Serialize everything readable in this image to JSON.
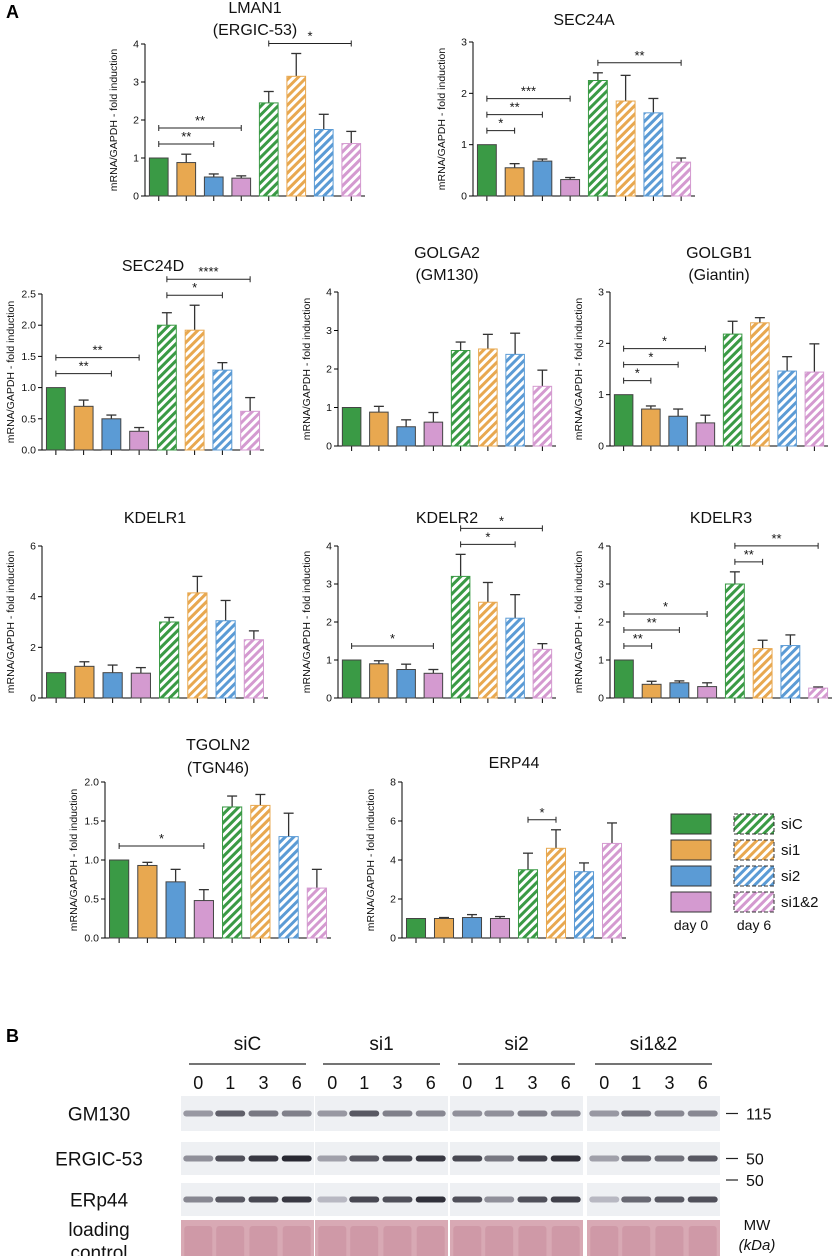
{
  "panel_a_label": "A",
  "panel_b_label": "B",
  "y_label": "mRNA/GAPDH - fold induction",
  "colors": {
    "siC": "#3a9a45",
    "si1": "#e8a850",
    "si2": "#5b9bd5",
    "si1&2": "#d49ad0"
  },
  "legend": {
    "entries": [
      "siC",
      "si1",
      "si2",
      "si1&2"
    ],
    "day0_label": "day 0",
    "day6_label": "day 6"
  },
  "chart_data": [
    {
      "type": "bar",
      "title": [
        "LMAN1",
        "(ERGIC-53)"
      ],
      "categories": [
        "siC d0",
        "si1 d0",
        "si2 d0",
        "si1&2 d0",
        "siC d6",
        "si1 d6",
        "si2 d6",
        "si1&2 d6"
      ],
      "values": [
        1,
        0.88,
        0.5,
        0.47,
        2.45,
        3.15,
        1.75,
        1.38
      ],
      "errors": [
        0,
        0.22,
        0.08,
        0.06,
        0.3,
        0.6,
        0.4,
        0.32
      ],
      "ylim": [
        0,
        4
      ],
      "yticks": [
        "0",
        "1",
        "2",
        "3",
        "4"
      ],
      "sig": [
        {
          "from": 0,
          "to": 2,
          "label": "**"
        },
        {
          "from": 0,
          "to": 3,
          "label": "**"
        },
        {
          "from": 4,
          "to": 7,
          "label": "*"
        }
      ]
    },
    {
      "type": "bar",
      "title": [
        "SEC24A"
      ],
      "categories": [
        "siC d0",
        "si1 d0",
        "si2 d0",
        "si1&2 d0",
        "siC d6",
        "si1 d6",
        "si2 d6",
        "si1&2 d6"
      ],
      "values": [
        1,
        0.55,
        0.68,
        0.32,
        2.25,
        1.85,
        1.62,
        0.66
      ],
      "errors": [
        0,
        0.08,
        0.04,
        0.04,
        0.15,
        0.5,
        0.28,
        0.08
      ],
      "ylim": [
        0,
        3
      ],
      "yticks": [
        "0",
        "1",
        "2",
        "3"
      ],
      "sig": [
        {
          "from": 0,
          "to": 1,
          "label": "*"
        },
        {
          "from": 0,
          "to": 2,
          "label": "**"
        },
        {
          "from": 0,
          "to": 3,
          "label": "***"
        },
        {
          "from": 4,
          "to": 7,
          "label": "**"
        }
      ]
    },
    {
      "type": "bar",
      "title": [
        "SEC24D"
      ],
      "categories": [
        "siC d0",
        "si1 d0",
        "si2 d0",
        "si1&2 d0",
        "siC d6",
        "si1 d6",
        "si2 d6",
        "si1&2 d6"
      ],
      "values": [
        1,
        0.7,
        0.5,
        0.3,
        2.0,
        1.92,
        1.28,
        0.62
      ],
      "errors": [
        0,
        0.1,
        0.06,
        0.06,
        0.2,
        0.4,
        0.12,
        0.22
      ],
      "ylim": [
        0,
        2.5
      ],
      "yticks": [
        "0.0",
        "0.5",
        "1.0",
        "1.5",
        "2.0",
        "2.5"
      ],
      "sig": [
        {
          "from": 0,
          "to": 2,
          "label": "**"
        },
        {
          "from": 0,
          "to": 3,
          "label": "**"
        },
        {
          "from": 4,
          "to": 6,
          "label": "*"
        },
        {
          "from": 4,
          "to": 7,
          "label": "****"
        }
      ]
    },
    {
      "type": "bar",
      "title": [
        "GOLGA2",
        "(GM130)"
      ],
      "categories": [
        "siC d0",
        "si1 d0",
        "si2 d0",
        "si1&2 d0",
        "siC d6",
        "si1 d6",
        "si2 d6",
        "si1&2 d6"
      ],
      "values": [
        1,
        0.88,
        0.5,
        0.62,
        2.48,
        2.52,
        2.38,
        1.55
      ],
      "errors": [
        0,
        0.15,
        0.18,
        0.25,
        0.22,
        0.38,
        0.55,
        0.42
      ],
      "ylim": [
        0,
        4
      ],
      "yticks": [
        "0",
        "1",
        "2",
        "3",
        "4"
      ],
      "sig": []
    },
    {
      "type": "bar",
      "title": [
        "GOLGB1",
        "(Giantin)"
      ],
      "categories": [
        "siC d0",
        "si1 d0",
        "si2 d0",
        "si1&2 d0",
        "siC d6",
        "si1 d6",
        "si2 d6",
        "si1&2 d6"
      ],
      "values": [
        1,
        0.72,
        0.58,
        0.45,
        2.18,
        2.4,
        1.46,
        1.44
      ],
      "errors": [
        0,
        0.06,
        0.14,
        0.15,
        0.25,
        0.1,
        0.28,
        0.55
      ],
      "ylim": [
        0,
        3
      ],
      "yticks": [
        "0",
        "1",
        "2",
        "3"
      ],
      "sig": [
        {
          "from": 0,
          "to": 1,
          "label": "*"
        },
        {
          "from": 0,
          "to": 2,
          "label": "*"
        },
        {
          "from": 0,
          "to": 3,
          "label": "*"
        }
      ]
    },
    {
      "type": "bar",
      "title": [
        "KDELR1"
      ],
      "categories": [
        "siC d0",
        "si1 d0",
        "si2 d0",
        "si1&2 d0",
        "siC d6",
        "si1 d6",
        "si2 d6",
        "si1&2 d6"
      ],
      "values": [
        1,
        1.25,
        1.0,
        0.98,
        3.0,
        4.15,
        3.05,
        2.3
      ],
      "errors": [
        0,
        0.18,
        0.3,
        0.22,
        0.18,
        0.65,
        0.8,
        0.35
      ],
      "ylim": [
        0,
        6
      ],
      "yticks": [
        "0",
        "2",
        "4",
        "6"
      ],
      "sig": []
    },
    {
      "type": "bar",
      "title": [
        "KDELR2"
      ],
      "categories": [
        "siC d0",
        "si1 d0",
        "si2 d0",
        "si1&2 d0",
        "siC d6",
        "si1 d6",
        "si2 d6",
        "si1&2 d6"
      ],
      "values": [
        1,
        0.9,
        0.75,
        0.65,
        3.2,
        2.52,
        2.1,
        1.28
      ],
      "errors": [
        0,
        0.08,
        0.14,
        0.1,
        0.58,
        0.52,
        0.62,
        0.15
      ],
      "ylim": [
        0,
        4
      ],
      "yticks": [
        "0",
        "1",
        "2",
        "3",
        "4"
      ],
      "sig": [
        {
          "from": 0,
          "to": 3,
          "label": "*"
        },
        {
          "from": 4,
          "to": 6,
          "label": "*"
        },
        {
          "from": 4,
          "to": 7,
          "label": "*"
        }
      ]
    },
    {
      "type": "bar",
      "title": [
        "KDELR3"
      ],
      "categories": [
        "siC d0",
        "si1 d0",
        "si2 d0",
        "si1&2 d0",
        "siC d6",
        "si1 d6",
        "si2 d6",
        "si1&2 d6"
      ],
      "values": [
        1,
        0.36,
        0.4,
        0.3,
        3.0,
        1.3,
        1.38,
        0.26
      ],
      "errors": [
        0,
        0.08,
        0.05,
        0.1,
        0.32,
        0.22,
        0.28,
        0.03
      ],
      "ylim": [
        0,
        4
      ],
      "yticks": [
        "0",
        "1",
        "2",
        "3",
        "4"
      ],
      "sig": [
        {
          "from": 0,
          "to": 1,
          "label": "**"
        },
        {
          "from": 0,
          "to": 2,
          "label": "**"
        },
        {
          "from": 0,
          "to": 3,
          "label": "*"
        },
        {
          "from": 4,
          "to": 5,
          "label": "**"
        },
        {
          "from": 4,
          "to": 7,
          "label": "**"
        }
      ]
    },
    {
      "type": "bar",
      "title": [
        "TGOLN2",
        "(TGN46)"
      ],
      "categories": [
        "siC d0",
        "si1 d0",
        "si2 d0",
        "si1&2 d0",
        "siC d6",
        "si1 d6",
        "si2 d6",
        "si1&2 d6"
      ],
      "values": [
        1,
        0.93,
        0.72,
        0.48,
        1.68,
        1.7,
        1.3,
        0.64
      ],
      "errors": [
        0,
        0.04,
        0.16,
        0.14,
        0.14,
        0.14,
        0.3,
        0.24
      ],
      "ylim": [
        0,
        2
      ],
      "yticks": [
        "0.0",
        "0.5",
        "1.0",
        "1.5",
        "2.0"
      ],
      "sig": [
        {
          "from": 0,
          "to": 3,
          "label": "*"
        }
      ]
    },
    {
      "type": "bar",
      "title": [
        "ERP44"
      ],
      "categories": [
        "siC d0",
        "si1 d0",
        "si2 d0",
        "si1&2 d0",
        "siC d6",
        "si1 d6",
        "si2 d6",
        "si1&2 d6"
      ],
      "values": [
        1,
        1.0,
        1.05,
        1.0,
        3.5,
        4.6,
        3.4,
        4.85
      ],
      "errors": [
        0,
        0.05,
        0.15,
        0.1,
        0.85,
        0.95,
        0.45,
        1.05
      ],
      "ylim": [
        0,
        8
      ],
      "yticks": [
        "0",
        "2",
        "4",
        "6",
        "8"
      ],
      "sig": [
        {
          "from": 4,
          "to": 5,
          "label": "*"
        }
      ]
    }
  ],
  "blot": {
    "groups": [
      {
        "name": "siC",
        "lanes": [
          "0",
          "1",
          "3",
          "6"
        ]
      },
      {
        "name": "si1",
        "lanes": [
          "0",
          "1",
          "3",
          "6"
        ]
      },
      {
        "name": "si2",
        "lanes": [
          "0",
          "1",
          "3",
          "6"
        ]
      },
      {
        "name": "si1&2",
        "lanes": [
          "0",
          "1",
          "3",
          "6"
        ]
      }
    ],
    "rows": [
      {
        "label": "GM130",
        "marker": "115",
        "intensities": [
          [
            0.3,
            0.65,
            0.5,
            0.45
          ],
          [
            0.3,
            0.7,
            0.45,
            0.4
          ],
          [
            0.35,
            0.35,
            0.45,
            0.4
          ],
          [
            0.3,
            0.5,
            0.4,
            0.4
          ]
        ]
      },
      {
        "label": "ERGIC-53",
        "marker": "50",
        "intensities": [
          [
            0.35,
            0.75,
            0.9,
            1.0
          ],
          [
            0.25,
            0.7,
            0.8,
            0.9
          ],
          [
            0.8,
            0.5,
            0.85,
            0.95
          ],
          [
            0.25,
            0.6,
            0.55,
            0.7
          ]
        ]
      },
      {
        "label": "ERp44",
        "marker": "50",
        "intensities": [
          [
            0.4,
            0.7,
            0.8,
            0.9
          ],
          [
            0.1,
            0.8,
            0.75,
            0.95
          ],
          [
            0.75,
            0.35,
            0.75,
            0.85
          ],
          [
            0.1,
            0.6,
            0.7,
            0.75
          ]
        ]
      },
      {
        "label": [
          "loading",
          "control"
        ],
        "marker": "",
        "intensities": []
      }
    ],
    "mw_label": "MW",
    "kda_label": "(kDa)"
  }
}
